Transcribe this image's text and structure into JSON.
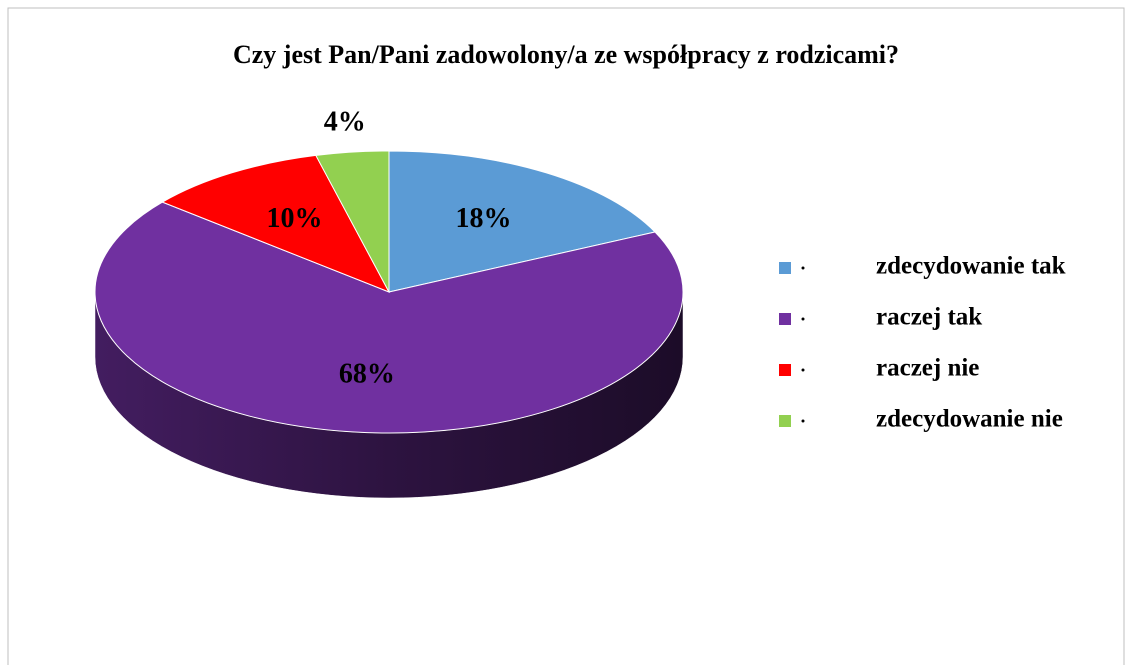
{
  "chart_data": {
    "type": "pie",
    "title": "Czy jest Pan/Pani zadowolony/a ze współpracy z rodzicami?",
    "categories": [
      "zdecydowanie tak",
      "raczej tak",
      "raczej nie",
      "zdecydowanie nie"
    ],
    "values": [
      18,
      68,
      10,
      4
    ],
    "value_labels": [
      "18%",
      "68%",
      "10%",
      "4%"
    ],
    "colors": [
      "#5b9bd5",
      "#7030a0",
      "#ff0000",
      "#92d050"
    ],
    "legend": "right"
  }
}
